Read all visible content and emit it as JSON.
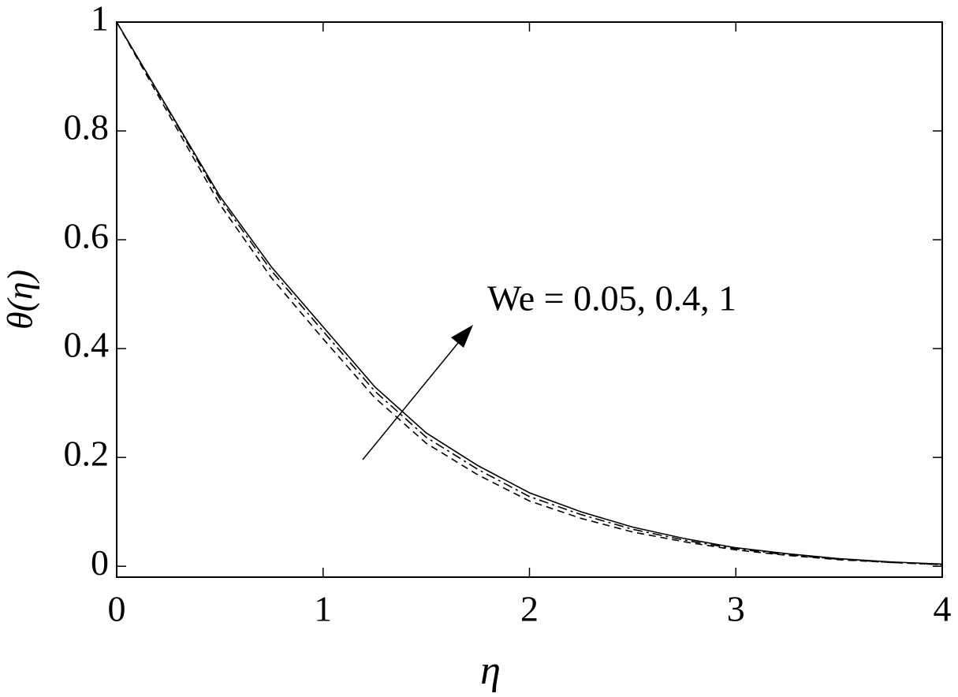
{
  "chart_data": {
    "type": "line",
    "x_label": "η",
    "y_label": "θ(η)",
    "annotation": "We = 0.05, 0.4, 1",
    "x": [
      0,
      0.25,
      0.5,
      0.75,
      1,
      1.25,
      1.5,
      1.75,
      2,
      2.25,
      2.5,
      2.75,
      3,
      3.25,
      3.5,
      3.75,
      4
    ],
    "series": [
      {
        "color": "#000000",
        "dash": "solid",
        "values": [
          1,
          0.84,
          0.68,
          0.55,
          0.44,
          0.33,
          0.245,
          0.185,
          0.135,
          0.1,
          0.072,
          0.051,
          0.034,
          0.023,
          0.014,
          0.008,
          0.004
        ]
      },
      {
        "color": "#000000",
        "dash": "dashdot",
        "values": [
          1,
          0.838,
          0.675,
          0.543,
          0.432,
          0.322,
          0.237,
          0.178,
          0.128,
          0.095,
          0.068,
          0.048,
          0.032,
          0.021,
          0.013,
          0.007,
          0.003
        ]
      },
      {
        "color": "#000000",
        "dash": "dashed",
        "values": [
          1,
          0.832,
          0.665,
          0.53,
          0.418,
          0.31,
          0.226,
          0.168,
          0.12,
          0.088,
          0.063,
          0.045,
          0.03,
          0.02,
          0.012,
          0.007,
          0.003
        ]
      }
    ],
    "xlim": [
      0,
      4
    ],
    "ylim": [
      -0.02,
      1
    ],
    "xticks": [
      0,
      1,
      2,
      3,
      4
    ],
    "yticks": [
      0,
      0.2,
      0.4,
      0.6,
      0.8,
      1
    ],
    "grid": false
  }
}
